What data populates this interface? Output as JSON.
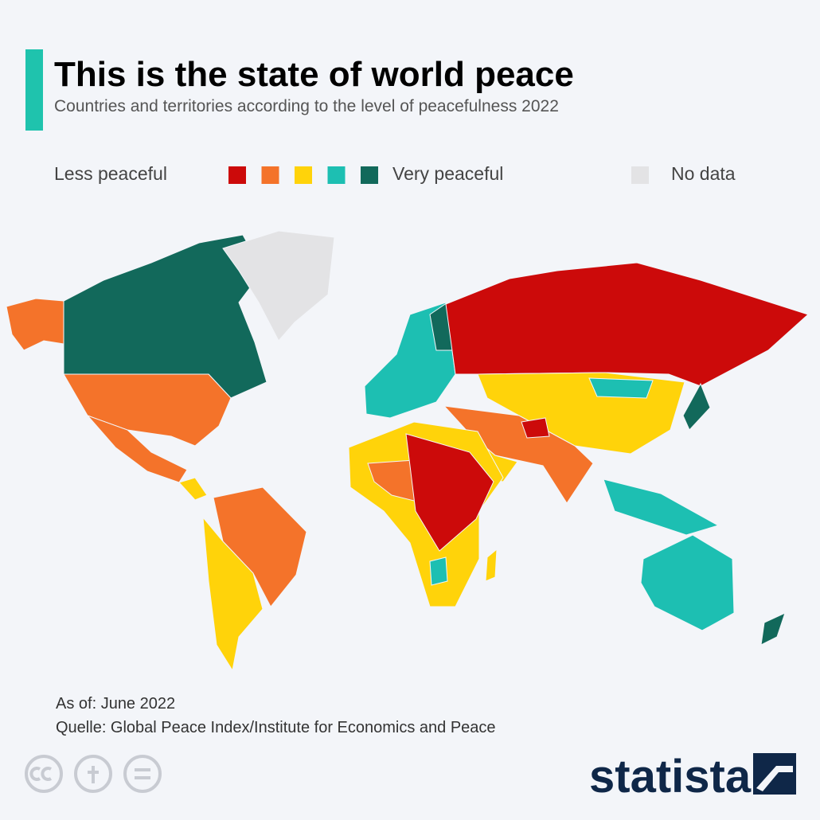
{
  "header": {
    "title": "This is the state of world peace",
    "subtitle": "Countries and territories according to the level of peacefulness 2022"
  },
  "legend": {
    "low_label": "Less peaceful",
    "high_label": "Very peaceful",
    "no_data_label": "No data",
    "colors": [
      "#cc0a0a",
      "#f4732a",
      "#ffd30a",
      "#1dbfb2",
      "#12695b"
    ],
    "no_data_color": "#e3e3e5"
  },
  "footer": {
    "date_note": "As of: June 2022",
    "source": "Quelle: Global Peace Index/Institute for Economics and Peace",
    "brand": "statista"
  }
}
